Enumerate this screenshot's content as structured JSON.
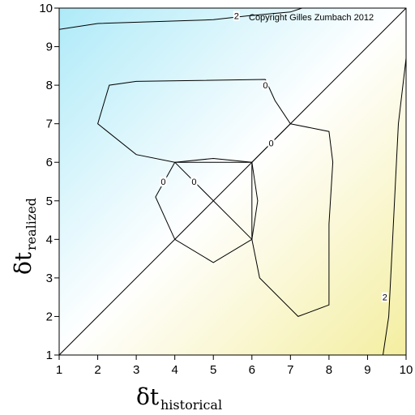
{
  "chart_data": {
    "type": "contour",
    "copyright": "Copyright Gilles Zumbach 2012",
    "xlabel": {
      "symbol": "δt",
      "subscript": "historical"
    },
    "ylabel": {
      "symbol": "δt",
      "subscript": "realized"
    },
    "xlim": [
      1,
      10
    ],
    "ylim": [
      1,
      10
    ],
    "xticks": [
      "1",
      "2",
      "3",
      "4",
      "5",
      "6",
      "7",
      "8",
      "9",
      "10"
    ],
    "yticks": [
      "1",
      "2",
      "3",
      "4",
      "5",
      "6",
      "7",
      "8",
      "9",
      "10"
    ],
    "diagonal": true,
    "colors": {
      "upper_left": "#aeeaf8",
      "center": "#ffffff",
      "lower_right": "#f4eea0"
    },
    "contours": [
      {
        "label": "0",
        "label_at": [
          6.35,
          8.0
        ],
        "points": [
          [
            6.35,
            8.15
          ],
          [
            3.0,
            8.1
          ],
          [
            2.3,
            8.0
          ],
          [
            2.0,
            7.0
          ],
          [
            3.0,
            6.2
          ],
          [
            4.0,
            6.0
          ],
          [
            6.0,
            6.0
          ],
          [
            7.0,
            7.0
          ],
          [
            6.6,
            7.6
          ],
          [
            6.35,
            8.15
          ]
        ]
      },
      {
        "label": "0",
        "label_at": [
          6.5,
          6.5
        ],
        "points": [
          [
            7.0,
            7.0
          ],
          [
            8.0,
            6.8
          ],
          [
            8.1,
            6.0
          ],
          [
            8.0,
            4.4
          ],
          [
            8.0,
            2.3
          ],
          [
            7.2,
            2.0
          ],
          [
            6.2,
            3.0
          ],
          [
            6.0,
            4.0
          ],
          [
            6.0,
            6.0
          ]
        ]
      },
      {
        "label": "0",
        "label_at": [
          3.7,
          5.5
        ],
        "points": [
          [
            4.0,
            6.0
          ],
          [
            3.5,
            5.1
          ],
          [
            4.0,
            4.0
          ],
          [
            5.0,
            3.4
          ],
          [
            6.0,
            4.0
          ],
          [
            6.15,
            5.0
          ],
          [
            6.0,
            6.0
          ],
          [
            5.0,
            6.1
          ],
          [
            4.0,
            6.0
          ]
        ]
      },
      {
        "label": "0",
        "label_at": [
          4.5,
          5.5
        ],
        "points": [
          [
            4.0,
            6.0
          ],
          [
            6.0,
            4.0
          ]
        ]
      },
      {
        "label": "2",
        "label_at": [
          5.6,
          9.8
        ],
        "points": [
          [
            1.0,
            9.45
          ],
          [
            2.0,
            9.6
          ],
          [
            5.0,
            9.7
          ],
          [
            5.9,
            9.8
          ],
          [
            7.0,
            9.9
          ],
          [
            7.3,
            10.0
          ]
        ]
      },
      {
        "label": "2",
        "label_at": [
          9.45,
          2.5
        ],
        "points": [
          [
            9.4,
            1.0
          ],
          [
            9.55,
            2.0
          ],
          [
            9.65,
            4.0
          ],
          [
            9.75,
            6.0
          ],
          [
            9.8,
            7.0
          ],
          [
            10.0,
            8.7
          ]
        ]
      }
    ]
  }
}
